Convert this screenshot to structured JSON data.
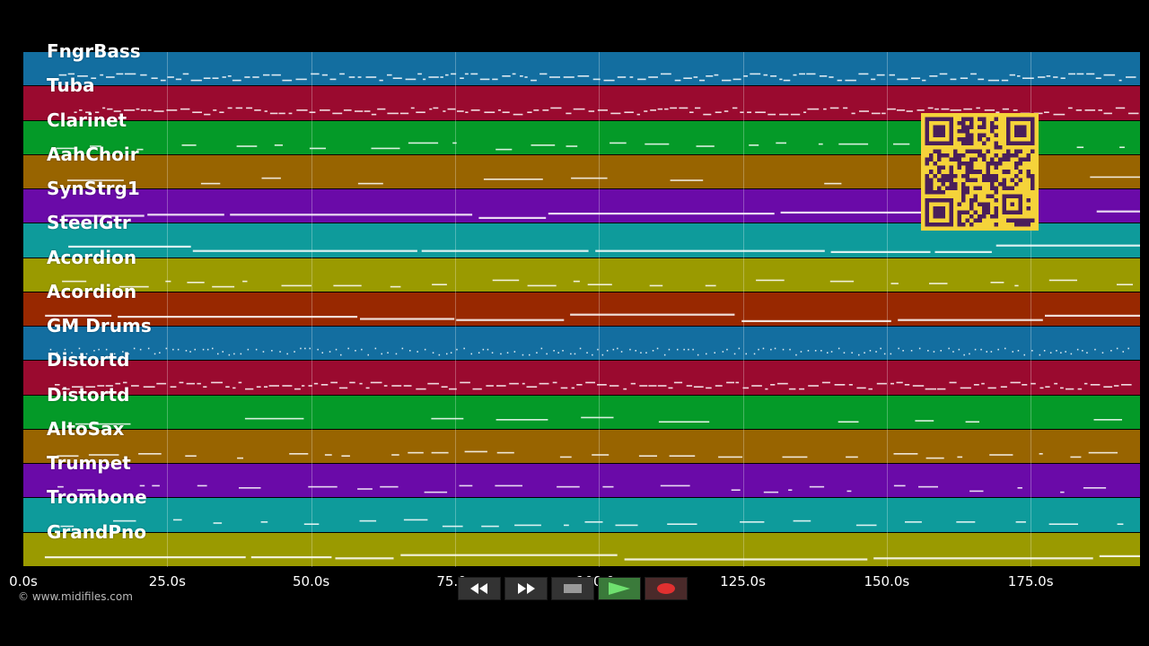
{
  "tracks": [
    {
      "label": "FngrBass",
      "color": "#136ea0",
      "pattern": "dense"
    },
    {
      "label": "Tuba",
      "color": "#9a0a2f",
      "pattern": "dense"
    },
    {
      "label": "Clarinet",
      "color": "#049a28",
      "pattern": "dash"
    },
    {
      "label": "AahChoir",
      "color": "#986400",
      "pattern": "sparse"
    },
    {
      "label": "SynStrg1",
      "color": "#6a0aa8",
      "pattern": "long"
    },
    {
      "label": "SteelGtr",
      "color": "#0e9b9b",
      "pattern": "long"
    },
    {
      "label": "Acordion",
      "color": "#9a9a00",
      "pattern": "dash"
    },
    {
      "label": "Acordion",
      "color": "#982800",
      "pattern": "long"
    },
    {
      "label": "GM Drums",
      "color": "#136ea0",
      "pattern": "dots"
    },
    {
      "label": "Distortd",
      "color": "#9a0a2f",
      "pattern": "dense"
    },
    {
      "label": "Distortd",
      "color": "#049a28",
      "pattern": "sparse"
    },
    {
      "label": "AltoSax",
      "color": "#986400",
      "pattern": "dash"
    },
    {
      "label": "Trumpet",
      "color": "#6a0aa8",
      "pattern": "dash"
    },
    {
      "label": "Trombone",
      "color": "#0e9b9b",
      "pattern": "dash"
    },
    {
      "label": "GrandPno",
      "color": "#9a9a00",
      "pattern": "long"
    }
  ],
  "timeline": {
    "max_seconds": 194,
    "ticks": [
      {
        "value": 0,
        "label": "0.0s"
      },
      {
        "value": 25,
        "label": "25.0s"
      },
      {
        "value": 50,
        "label": "50.0s"
      },
      {
        "value": 75,
        "label": "75.0s"
      },
      {
        "value": 100,
        "label": "100.0s"
      },
      {
        "value": 125,
        "label": "125.0s"
      },
      {
        "value": 150,
        "label": "150.0s"
      },
      {
        "value": 175,
        "label": "175.0s"
      }
    ]
  },
  "copyright": "© www.midifiles.com",
  "qr": {
    "fg": "#4a1f5a",
    "bg": "#f5d33a"
  },
  "transport": [
    {
      "name": "rewind-button",
      "icon": "rewind-icon"
    },
    {
      "name": "fast-forward-button",
      "icon": "fast-forward-icon"
    },
    {
      "name": "stop-button",
      "icon": "stop-icon"
    },
    {
      "name": "play-button",
      "icon": "play-icon"
    },
    {
      "name": "record-button",
      "icon": "record-icon"
    }
  ],
  "colors": {
    "background": "#000000",
    "note": "#ffffff"
  }
}
